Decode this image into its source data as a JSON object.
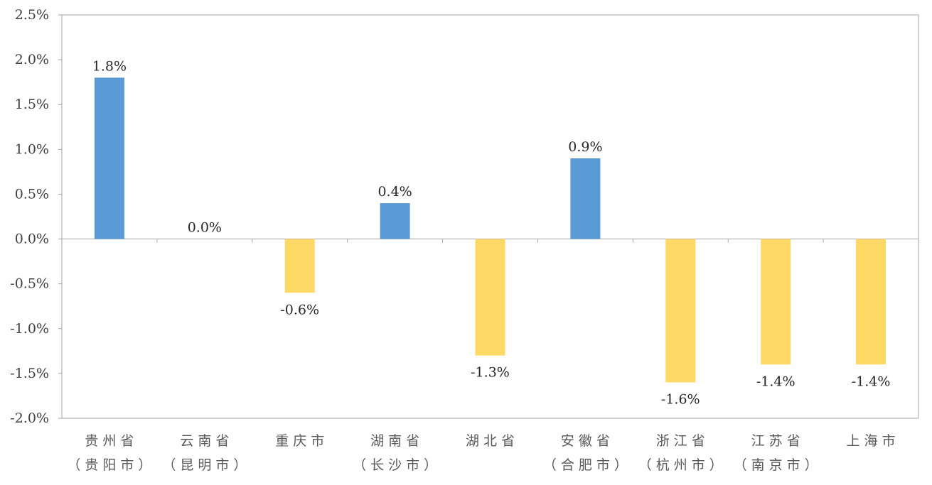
{
  "chart_data": {
    "type": "bar",
    "title": "",
    "xlabel": "",
    "ylabel": "",
    "ylim": [
      -2.0,
      2.5
    ],
    "ytick_step": 0.5,
    "ytick_labels": [
      "2.5%",
      "2.0%",
      "1.5%",
      "1.0%",
      "0.5%",
      "0.0%",
      "-0.5%",
      "-1.0%",
      "-1.5%",
      "-2.0%"
    ],
    "grid": false,
    "legend": "none",
    "categories": [
      [
        "贵州省",
        "（贵阳市）"
      ],
      [
        "云南省",
        "（昆明市）"
      ],
      [
        "重庆市"
      ],
      [
        "湖南省",
        "（长沙市）"
      ],
      [
        "湖北省"
      ],
      [
        "安徽省",
        "（合肥市）"
      ],
      [
        "浙江省",
        "（杭州市）"
      ],
      [
        "江苏省",
        "（南京市）"
      ],
      [
        "上海市"
      ]
    ],
    "values": [
      1.8,
      0.0,
      -0.6,
      0.4,
      -1.3,
      0.9,
      -1.6,
      -1.4,
      -1.4
    ],
    "data_labels": [
      "1.8%",
      "0.0%",
      "-0.6%",
      "0.4%",
      "-1.3%",
      "0.9%",
      "-1.6%",
      "-1.4%",
      "-1.4%"
    ],
    "colors": {
      "positive": "#5B9BD5",
      "negative": "#FFD966",
      "axis": "#A6A6A6"
    }
  }
}
